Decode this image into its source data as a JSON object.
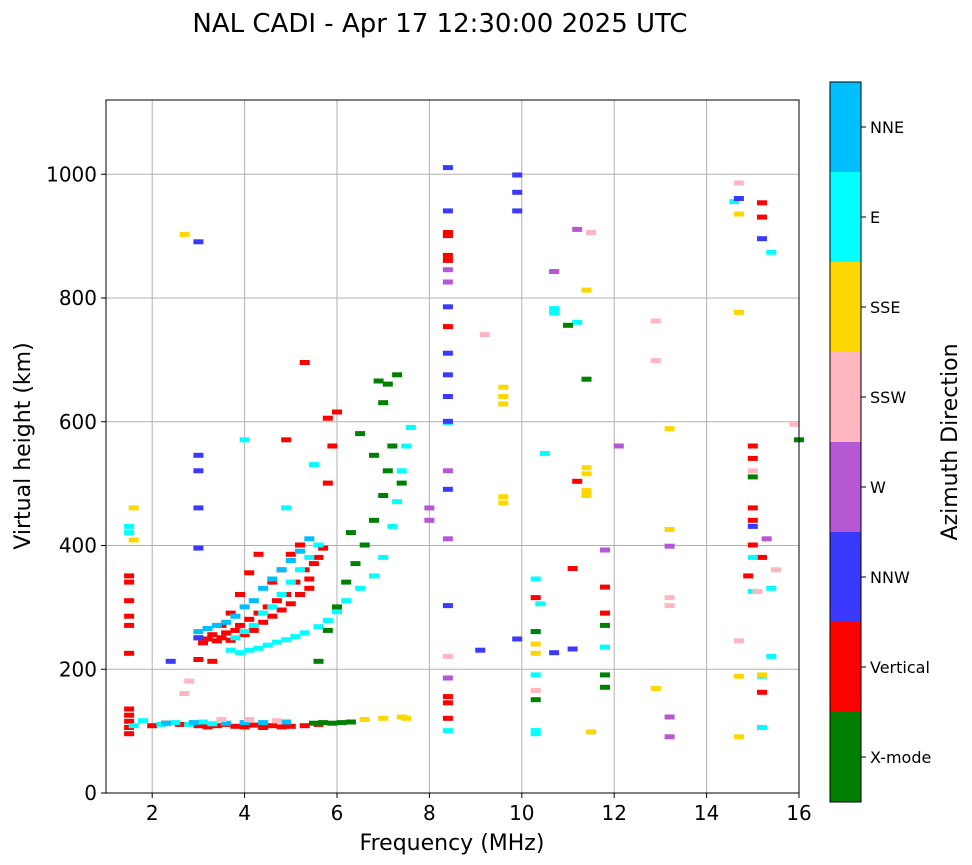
{
  "chart_data": {
    "type": "scatter",
    "title": "NAL CADI - Apr 17 12:30:00 2025 UTC",
    "xlabel": "Frequency (MHz)",
    "ylabel": "Virtual height (km)",
    "xlim": [
      1,
      16
    ],
    "ylim": [
      0,
      1120
    ],
    "grid": true,
    "xticks": [
      2,
      4,
      6,
      8,
      10,
      12,
      14,
      16
    ],
    "yticks": [
      0,
      200,
      400,
      600,
      800,
      1000
    ],
    "colorbar": {
      "label": "Azimuth Direction",
      "categories": [
        "X-mode",
        "Vertical",
        "NNW",
        "W",
        "SSW",
        "SSE",
        "E",
        "NNE"
      ],
      "colors": {
        "X-mode": "#008000",
        "Vertical": "#ff0000",
        "NNW": "#3a3aff",
        "W": "#b657d4",
        "SSW": "#ffb6c1",
        "SSE": "#ffd700",
        "E": "#00ffff",
        "NNE": "#00bfff"
      }
    },
    "series": [
      {
        "name": "Vertical",
        "points": [
          [
            1.5,
            95
          ],
          [
            1.5,
            105
          ],
          [
            1.5,
            115
          ],
          [
            1.5,
            125
          ],
          [
            1.5,
            135
          ],
          [
            2.0,
            108
          ],
          [
            2.3,
            112
          ],
          [
            2.6,
            110
          ],
          [
            3.0,
            108
          ],
          [
            3.2,
            106
          ],
          [
            3.4,
            108
          ],
          [
            3.6,
            110
          ],
          [
            3.8,
            107
          ],
          [
            4.0,
            106
          ],
          [
            4.2,
            109
          ],
          [
            4.4,
            105
          ],
          [
            4.6,
            108
          ],
          [
            4.8,
            106
          ],
          [
            5.0,
            107
          ],
          [
            5.3,
            108
          ],
          [
            5.6,
            110
          ],
          [
            1.5,
            225
          ],
          [
            1.5,
            270
          ],
          [
            1.5,
            285
          ],
          [
            1.5,
            310
          ],
          [
            1.5,
            340
          ],
          [
            1.5,
            350
          ],
          [
            3.0,
            250
          ],
          [
            3.1,
            242
          ],
          [
            3.2,
            248
          ],
          [
            3.3,
            255
          ],
          [
            3.4,
            245
          ],
          [
            3.5,
            250
          ],
          [
            3.6,
            258
          ],
          [
            3.7,
            246
          ],
          [
            3.8,
            262
          ],
          [
            3.9,
            270
          ],
          [
            4.0,
            255
          ],
          [
            4.1,
            280
          ],
          [
            4.2,
            262
          ],
          [
            4.3,
            290
          ],
          [
            4.4,
            275
          ],
          [
            4.5,
            300
          ],
          [
            4.6,
            285
          ],
          [
            4.7,
            310
          ],
          [
            4.8,
            295
          ],
          [
            4.9,
            320
          ],
          [
            5.0,
            305
          ],
          [
            5.1,
            340
          ],
          [
            5.2,
            320
          ],
          [
            5.3,
            360
          ],
          [
            5.4,
            345
          ],
          [
            5.5,
            370
          ],
          [
            5.6,
            380
          ],
          [
            5.7,
            395
          ],
          [
            3.0,
            215
          ],
          [
            3.3,
            212
          ],
          [
            3.5,
            270
          ],
          [
            3.7,
            290
          ],
          [
            3.9,
            320
          ],
          [
            4.1,
            355
          ],
          [
            4.3,
            385
          ],
          [
            4.6,
            340
          ],
          [
            4.8,
            360
          ],
          [
            5.0,
            385
          ],
          [
            5.2,
            400
          ],
          [
            5.4,
            330
          ],
          [
            5.8,
            500
          ],
          [
            5.9,
            560
          ],
          [
            6.0,
            615
          ],
          [
            5.8,
            605
          ],
          [
            5.3,
            695
          ],
          [
            4.9,
            570
          ],
          [
            8.4,
            900
          ],
          [
            8.4,
            905
          ],
          [
            8.4,
            860
          ],
          [
            8.4,
            868
          ],
          [
            8.4,
            753
          ],
          [
            8.4,
            155
          ],
          [
            8.4,
            145
          ],
          [
            8.4,
            120
          ],
          [
            10.3,
            315
          ],
          [
            11.1,
            362
          ],
          [
            11.2,
            503
          ],
          [
            11.8,
            332
          ],
          [
            11.8,
            290
          ],
          [
            15.2,
            953
          ],
          [
            15.2,
            930
          ],
          [
            15.2,
            380
          ],
          [
            15.0,
            440
          ],
          [
            15.0,
            460
          ],
          [
            15.0,
            540
          ],
          [
            15.0,
            560
          ],
          [
            14.9,
            350
          ],
          [
            15.0,
            400
          ],
          [
            15.2,
            162
          ]
        ]
      },
      {
        "name": "E",
        "points": [
          [
            1.6,
            108
          ],
          [
            1.8,
            116
          ],
          [
            2.2,
            110
          ],
          [
            2.5,
            113
          ],
          [
            2.8,
            110
          ],
          [
            3.1,
            114
          ],
          [
            3.3,
            111
          ],
          [
            3.7,
            230
          ],
          [
            3.9,
            226
          ],
          [
            4.1,
            230
          ],
          [
            4.3,
            233
          ],
          [
            4.5,
            238
          ],
          [
            4.7,
            243
          ],
          [
            4.9,
            247
          ],
          [
            5.1,
            252
          ],
          [
            5.3,
            258
          ],
          [
            5.6,
            268
          ],
          [
            5.8,
            278
          ],
          [
            6.0,
            292
          ],
          [
            6.2,
            310
          ],
          [
            6.5,
            330
          ],
          [
            6.8,
            350
          ],
          [
            7.0,
            380
          ],
          [
            7.2,
            430
          ],
          [
            7.3,
            470
          ],
          [
            7.4,
            520
          ],
          [
            7.5,
            560
          ],
          [
            7.6,
            590
          ],
          [
            3.8,
            250
          ],
          [
            4.0,
            260
          ],
          [
            4.2,
            270
          ],
          [
            4.4,
            290
          ],
          [
            4.6,
            300
          ],
          [
            4.8,
            320
          ],
          [
            5.0,
            340
          ],
          [
            5.2,
            360
          ],
          [
            5.4,
            380
          ],
          [
            5.6,
            400
          ],
          [
            1.5,
            430
          ],
          [
            1.5,
            420
          ],
          [
            4.0,
            570
          ],
          [
            4.9,
            460
          ],
          [
            5.5,
            530
          ],
          [
            8.4,
            100
          ],
          [
            8.4,
            598
          ],
          [
            10.3,
            345
          ],
          [
            10.3,
            95
          ],
          [
            10.3,
            100
          ],
          [
            10.3,
            260
          ],
          [
            10.3,
            190
          ],
          [
            10.4,
            305
          ],
          [
            10.5,
            548
          ],
          [
            10.7,
            782
          ],
          [
            10.7,
            775
          ],
          [
            11.2,
            760
          ],
          [
            11.8,
            235
          ],
          [
            15.4,
            220
          ],
          [
            15.4,
            873
          ],
          [
            15.4,
            330
          ],
          [
            15.0,
            325
          ],
          [
            15.2,
            105
          ],
          [
            15.2,
            188
          ],
          [
            14.6,
            955
          ],
          [
            15.0,
            380
          ]
        ]
      },
      {
        "name": "NNE",
        "points": [
          [
            3.0,
            260
          ],
          [
            3.2,
            265
          ],
          [
            3.4,
            270
          ],
          [
            3.6,
            275
          ],
          [
            3.8,
            285
          ],
          [
            4.0,
            300
          ],
          [
            4.2,
            310
          ],
          [
            4.4,
            330
          ],
          [
            4.6,
            345
          ],
          [
            4.8,
            360
          ],
          [
            5.0,
            375
          ],
          [
            5.2,
            390
          ],
          [
            5.4,
            410
          ],
          [
            2.3,
            112
          ],
          [
            2.9,
            113
          ],
          [
            3.6,
            112
          ],
          [
            4.0,
            113
          ],
          [
            4.4,
            113
          ],
          [
            4.9,
            114
          ]
        ]
      },
      {
        "name": "X-mode",
        "points": [
          [
            5.5,
            112
          ],
          [
            5.7,
            113
          ],
          [
            5.9,
            112
          ],
          [
            6.1,
            113
          ],
          [
            6.3,
            114
          ],
          [
            5.6,
            212
          ],
          [
            5.8,
            262
          ],
          [
            6.0,
            300
          ],
          [
            6.2,
            340
          ],
          [
            6.4,
            370
          ],
          [
            6.6,
            400
          ],
          [
            6.8,
            440
          ],
          [
            7.0,
            480
          ],
          [
            7.1,
            520
          ],
          [
            7.2,
            560
          ],
          [
            7.0,
            630
          ],
          [
            7.1,
            660
          ],
          [
            6.9,
            665
          ],
          [
            7.3,
            675
          ],
          [
            6.5,
            580
          ],
          [
            6.8,
            545
          ],
          [
            7.4,
            500
          ],
          [
            6.3,
            420
          ],
          [
            10.3,
            260
          ],
          [
            10.3,
            150
          ],
          [
            11.0,
            755
          ],
          [
            11.4,
            668
          ],
          [
            11.8,
            270
          ],
          [
            11.8,
            190
          ],
          [
            11.8,
            170
          ],
          [
            15.0,
            510
          ],
          [
            16.0,
            570
          ]
        ]
      },
      {
        "name": "NNW",
        "points": [
          [
            3.0,
            890
          ],
          [
            3.0,
            545
          ],
          [
            3.0,
            520
          ],
          [
            3.0,
            460
          ],
          [
            3.0,
            395
          ],
          [
            3.0,
            250
          ],
          [
            2.4,
            212
          ],
          [
            8.4,
            1010
          ],
          [
            8.4,
            940
          ],
          [
            8.4,
            785
          ],
          [
            8.4,
            710
          ],
          [
            8.4,
            675
          ],
          [
            8.4,
            640
          ],
          [
            8.4,
            600
          ],
          [
            8.4,
            490
          ],
          [
            8.4,
            302
          ],
          [
            9.9,
            998
          ],
          [
            9.9,
            970
          ],
          [
            9.9,
            940
          ],
          [
            9.9,
            248
          ],
          [
            9.1,
            230
          ],
          [
            10.7,
            226
          ],
          [
            11.1,
            232
          ],
          [
            14.7,
            960
          ],
          [
            15.2,
            895
          ],
          [
            15.0,
            430
          ]
        ]
      },
      {
        "name": "W",
        "points": [
          [
            8.4,
            845
          ],
          [
            8.4,
            825
          ],
          [
            8.4,
            520
          ],
          [
            8.4,
            410
          ],
          [
            8.4,
            185
          ],
          [
            10.7,
            842
          ],
          [
            11.2,
            910
          ],
          [
            12.1,
            560
          ],
          [
            11.8,
            392
          ],
          [
            13.2,
            398
          ],
          [
            13.2,
            122
          ],
          [
            13.2,
            90
          ],
          [
            15.3,
            410
          ],
          [
            8.0,
            440
          ],
          [
            8.0,
            460
          ]
        ]
      },
      {
        "name": "SSW",
        "points": [
          [
            2.7,
            160
          ],
          [
            2.8,
            180
          ],
          [
            3.5,
            118
          ],
          [
            4.1,
            118
          ],
          [
            4.7,
            116
          ],
          [
            8.4,
            220
          ],
          [
            9.2,
            740
          ],
          [
            10.3,
            165
          ],
          [
            11.5,
            905
          ],
          [
            12.9,
            762
          ],
          [
            12.9,
            698
          ],
          [
            13.2,
            315
          ],
          [
            13.2,
            302
          ],
          [
            14.7,
            985
          ],
          [
            14.7,
            245
          ],
          [
            15.5,
            360
          ],
          [
            15.9,
            595
          ],
          [
            15.0,
            520
          ],
          [
            15.1,
            325
          ]
        ]
      },
      {
        "name": "SSE",
        "points": [
          [
            1.6,
            460
          ],
          [
            1.6,
            408
          ],
          [
            2.7,
            902
          ],
          [
            6.6,
            118
          ],
          [
            7.0,
            120
          ],
          [
            7.4,
            122
          ],
          [
            9.6,
            655
          ],
          [
            9.6,
            640
          ],
          [
            9.6,
            628
          ],
          [
            9.6,
            478
          ],
          [
            9.6,
            468
          ],
          [
            10.3,
            240
          ],
          [
            10.3,
            225
          ],
          [
            11.4,
            812
          ],
          [
            11.4,
            525
          ],
          [
            11.4,
            515
          ],
          [
            11.4,
            488
          ],
          [
            11.4,
            480
          ],
          [
            13.2,
            588
          ],
          [
            13.2,
            425
          ],
          [
            12.9,
            168
          ],
          [
            14.7,
            935
          ],
          [
            14.7,
            776
          ],
          [
            14.7,
            188
          ],
          [
            14.7,
            90
          ],
          [
            15.2,
            190
          ],
          [
            11.5,
            98
          ],
          [
            7.5,
            120
          ]
        ]
      }
    ]
  }
}
